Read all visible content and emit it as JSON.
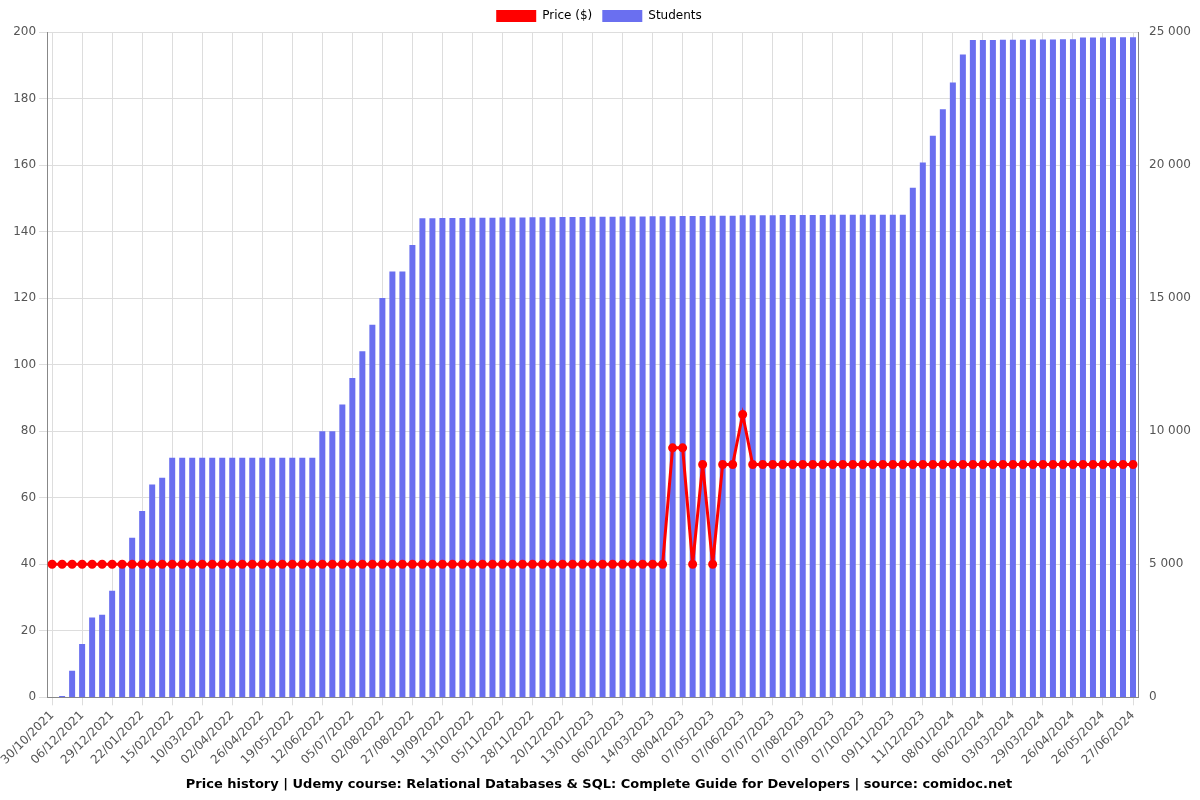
{
  "chart_data": {
    "type": "bar",
    "title": "Price history | Udemy course: Relational Databases & SQL: Complete Guide for Developers | source: comidoc.net",
    "categories": [
      "30/10/2021",
      null,
      null,
      "06/12/2021",
      null,
      null,
      "29/12/2021",
      null,
      null,
      "22/01/2022",
      null,
      null,
      "15/02/2022",
      null,
      null,
      "10/03/2022",
      null,
      null,
      "02/04/2022",
      null,
      null,
      "26/04/2022",
      null,
      null,
      "19/05/2022",
      null,
      null,
      "12/06/2022",
      null,
      null,
      "05/07/2022",
      null,
      null,
      "02/08/2022",
      null,
      null,
      "27/08/2022",
      null,
      null,
      "19/09/2022",
      null,
      null,
      "13/10/2022",
      null,
      null,
      "05/11/2022",
      null,
      null,
      "28/11/2022",
      null,
      null,
      "20/12/2022",
      null,
      null,
      "13/01/2023",
      null,
      null,
      "06/02/2023",
      null,
      null,
      "14/03/2023",
      null,
      null,
      "08/04/2023",
      null,
      null,
      "07/05/2023",
      null,
      null,
      "07/06/2023",
      null,
      null,
      "07/07/2023",
      null,
      null,
      "07/08/2023",
      null,
      null,
      "07/09/2023",
      null,
      null,
      "07/10/2023",
      null,
      null,
      "09/11/2023",
      null,
      null,
      "11/12/2023",
      null,
      null,
      "08/01/2024",
      null,
      null,
      "06/02/2024",
      null,
      null,
      "03/03/2024",
      null,
      null,
      "29/03/2024",
      null,
      null,
      "26/04/2024",
      null,
      null,
      "26/05/2024",
      null,
      null,
      "27/06/2024"
    ],
    "series": [
      {
        "name": "Price ($)",
        "type": "line",
        "color": "#ff0000",
        "marker": "circle",
        "line_style": "solid",
        "values": [
          40,
          40,
          40,
          40,
          40,
          40,
          40,
          40,
          40,
          40,
          40,
          40,
          40,
          40,
          40,
          40,
          40,
          40,
          40,
          40,
          40,
          40,
          40,
          40,
          40,
          40,
          40,
          40,
          40,
          40,
          40,
          40,
          40,
          40,
          40,
          40,
          40,
          40,
          40,
          40,
          40,
          40,
          40,
          40,
          40,
          40,
          40,
          40,
          40,
          40,
          40,
          40,
          40,
          40,
          40,
          40,
          40,
          40,
          40,
          40,
          40,
          40,
          75,
          75,
          40,
          70,
          40,
          70,
          70,
          85,
          70,
          70,
          70,
          70,
          70,
          70,
          70,
          70,
          70,
          70,
          70,
          70,
          70,
          70,
          70,
          70,
          70,
          70,
          70,
          70,
          70,
          70,
          70,
          70,
          70,
          70,
          70,
          70,
          70,
          70,
          70,
          70,
          70,
          70,
          70,
          70,
          70,
          70,
          70
        ]
      },
      {
        "name": "Students",
        "type": "bar",
        "axis": "y2",
        "color": "#6a6ff0",
        "values": [
          0,
          50,
          1000,
          2000,
          3000,
          3100,
          4000,
          5000,
          6000,
          7000,
          8000,
          8250,
          9000,
          9000,
          9000,
          9000,
          9000,
          9000,
          9000,
          9000,
          9000,
          9000,
          9000,
          9000,
          9000,
          9000,
          9000,
          10000,
          10000,
          11000,
          12000,
          13000,
          14000,
          15000,
          16000,
          16000,
          17000,
          18000,
          18000,
          18010,
          18010,
          18010,
          18020,
          18020,
          18020,
          18030,
          18030,
          18030,
          18040,
          18040,
          18040,
          18050,
          18050,
          18050,
          18060,
          18060,
          18060,
          18070,
          18070,
          18070,
          18080,
          18080,
          18080,
          18090,
          18090,
          18090,
          18100,
          18100,
          18100,
          18110,
          18110,
          18110,
          18110,
          18120,
          18120,
          18120,
          18120,
          18120,
          18130,
          18130,
          18130,
          18130,
          18130,
          18130,
          18130,
          18130,
          19150,
          20100,
          21100,
          22100,
          23100,
          24150,
          24700,
          24700,
          24700,
          24710,
          24710,
          24710,
          24720,
          24720,
          24720,
          24730,
          24730,
          24790,
          24790,
          24790,
          24800,
          24800,
          24800
        ]
      }
    ],
    "ylim": [
      0,
      200
    ],
    "yticks": [
      0,
      20,
      40,
      60,
      80,
      100,
      120,
      140,
      160,
      180,
      200
    ],
    "y2lim": [
      0,
      25000
    ],
    "y2ticks": [
      0,
      {
        "value": 5000,
        "label": "5 000"
      },
      {
        "value": 10000,
        "label": "10 000"
      },
      {
        "value": 15000,
        "label": "15 000"
      },
      {
        "value": 20000,
        "label": "20 000"
      },
      {
        "value": 25000,
        "label": "25 000"
      }
    ],
    "grid": true,
    "legend": "top"
  }
}
